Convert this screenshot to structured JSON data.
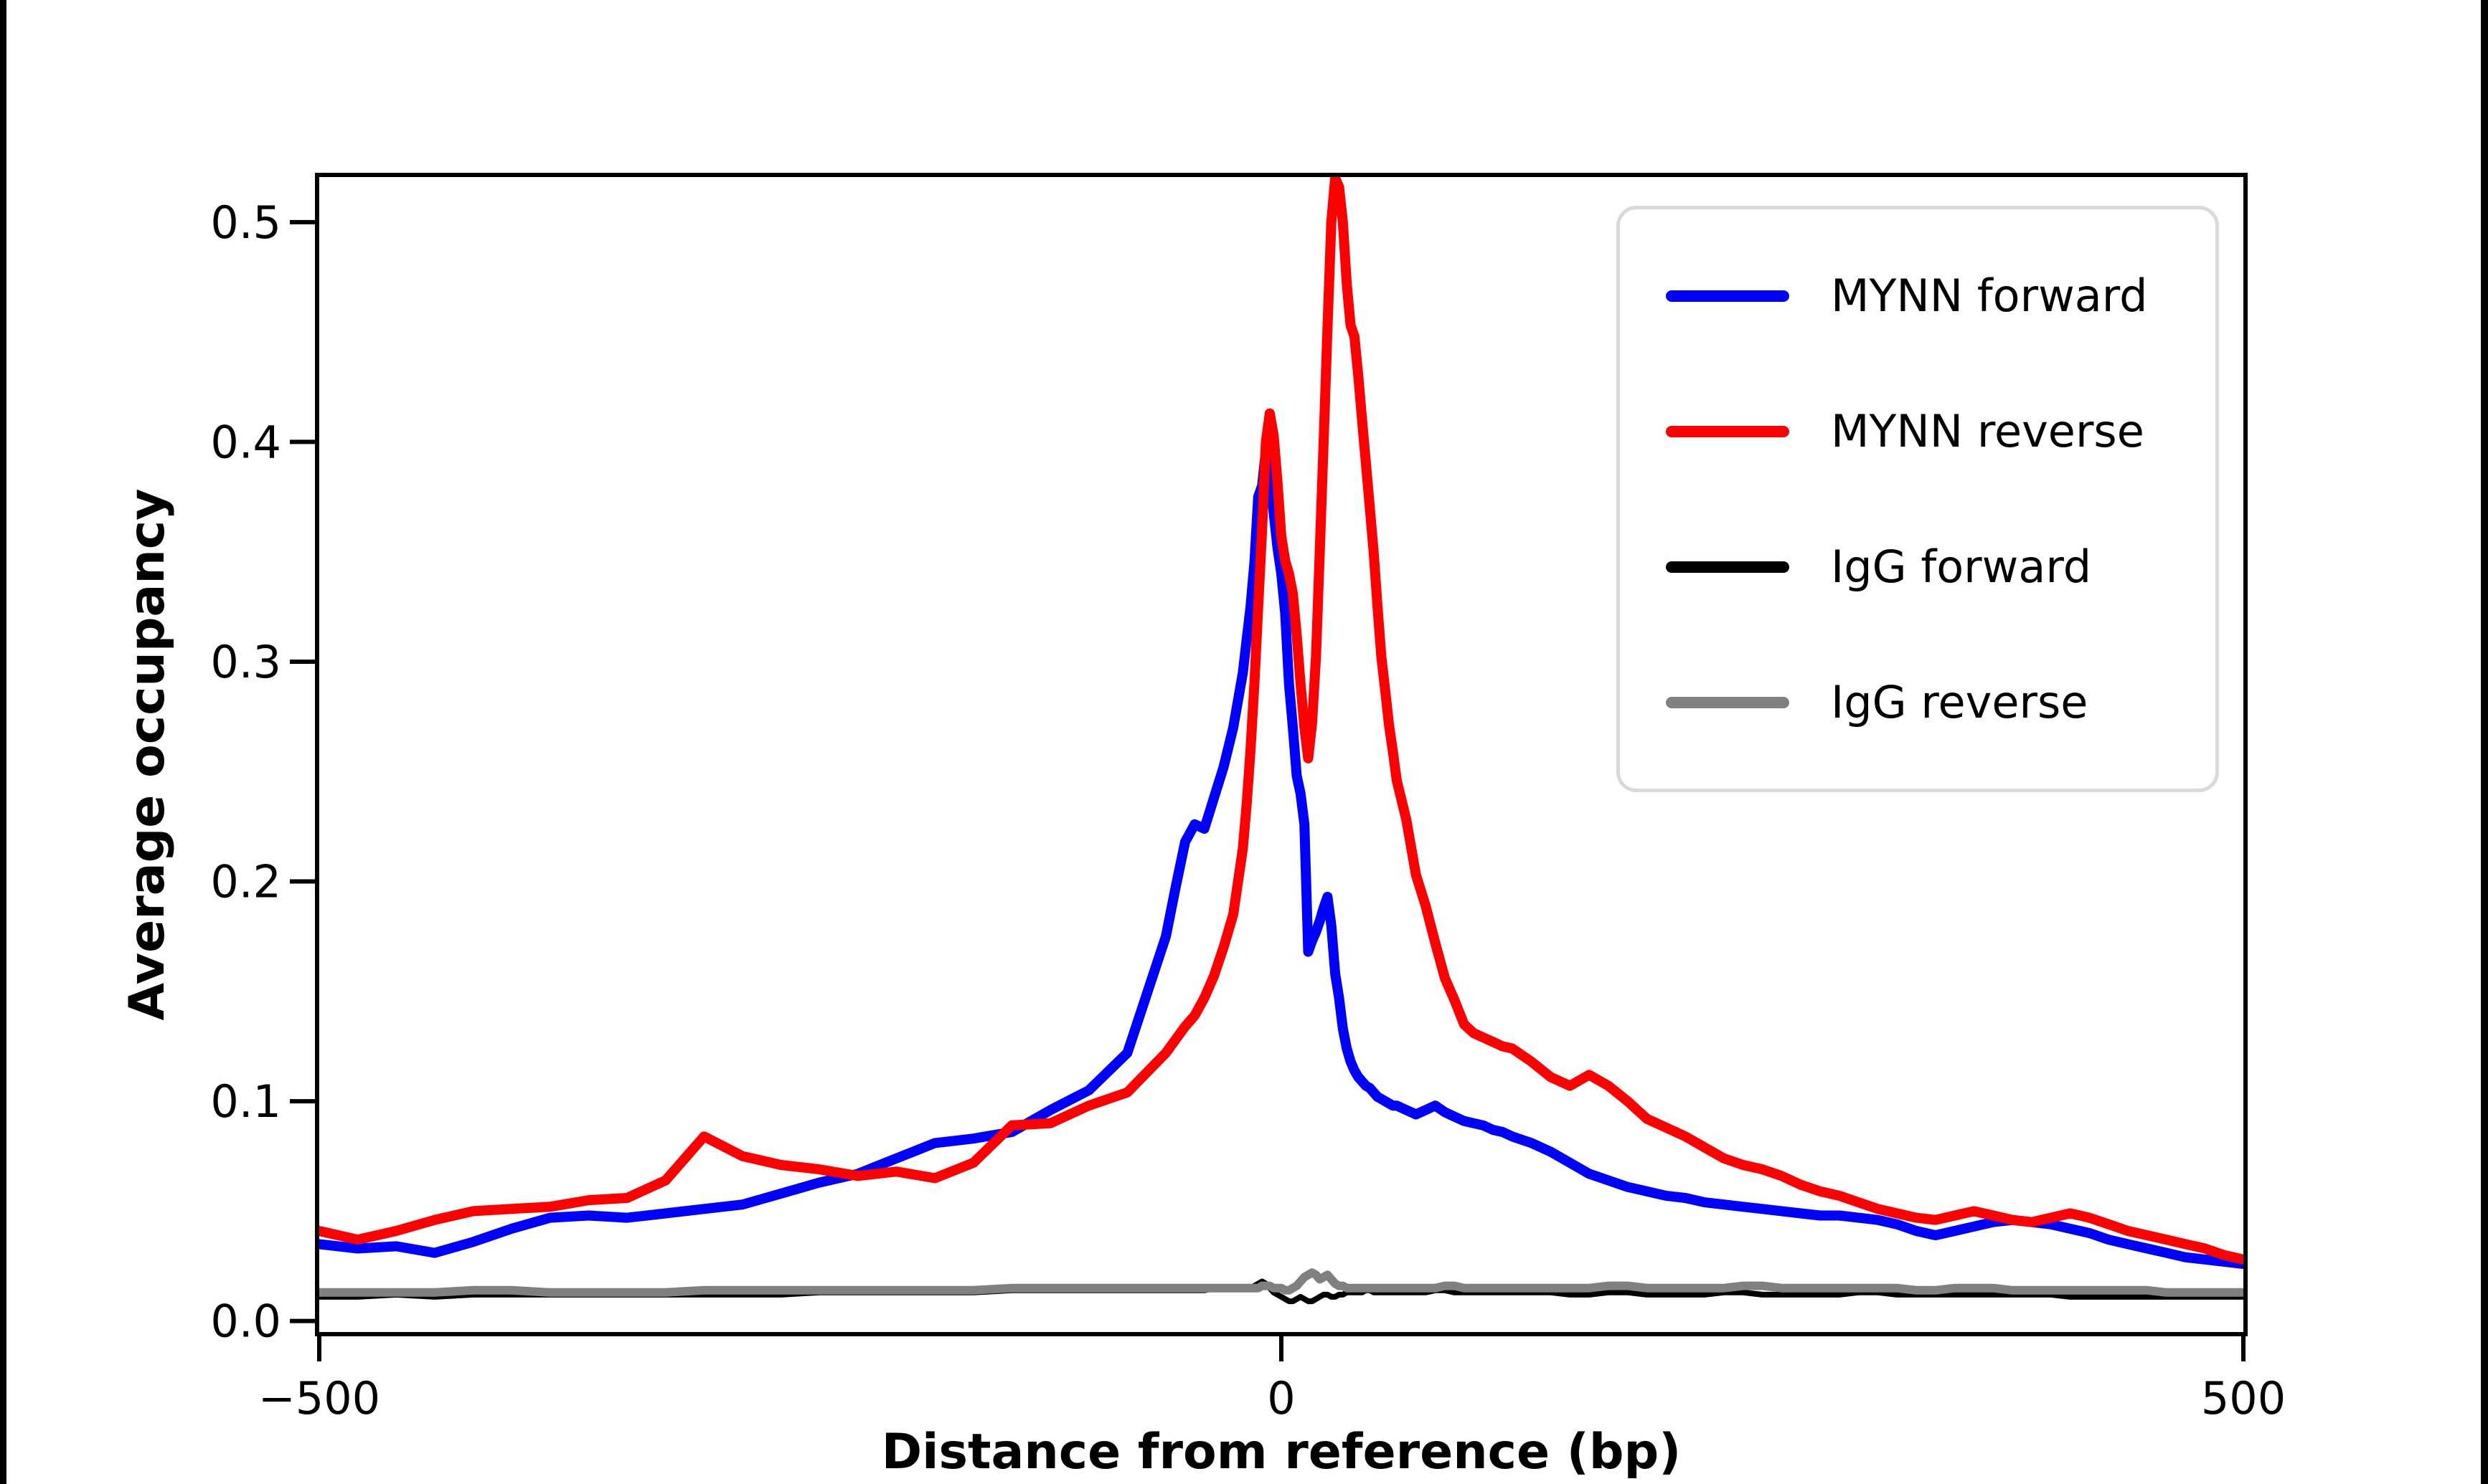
{
  "screen": {
    "background": "#ffffff",
    "edge_bar_color": "#000000"
  },
  "chart_data": {
    "type": "line",
    "title": "",
    "xlabel": "Distance from reference (bp)",
    "ylabel": "Average occupancy",
    "xlim": [
      -500,
      500
    ],
    "ylim": [
      -0.005,
      0.5205
    ],
    "grid": false,
    "legend_position": "upper right",
    "xticks": {
      "values": [
        -500,
        0,
        500
      ],
      "labels": [
        "−500",
        "0",
        "500"
      ]
    },
    "yticks": {
      "values": [
        0.0,
        0.1,
        0.2,
        0.3,
        0.4,
        0.5
      ],
      "labels": [
        "0.0",
        "0.1",
        "0.2",
        "0.3",
        "0.4",
        "0.5"
      ]
    },
    "x": [
      -500,
      -480,
      -460,
      -440,
      -420,
      -400,
      -380,
      -360,
      -340,
      -320,
      -300,
      -280,
      -260,
      -240,
      -220,
      -200,
      -180,
      -160,
      -140,
      -120,
      -100,
      -80,
      -60,
      -55,
      -50,
      -45,
      -40,
      -35,
      -30,
      -25,
      -20,
      -18,
      -16,
      -14,
      -12,
      -10,
      -8,
      -6,
      -4,
      -2,
      0,
      2,
      4,
      6,
      8,
      10,
      12,
      14,
      16,
      18,
      20,
      22,
      24,
      26,
      28,
      30,
      32,
      34,
      36,
      38,
      40,
      42,
      44,
      46,
      48,
      50,
      52,
      54,
      56,
      58,
      60,
      65,
      70,
      75,
      80,
      85,
      90,
      95,
      100,
      105,
      110,
      115,
      120,
      130,
      140,
      150,
      160,
      170,
      180,
      190,
      200,
      210,
      220,
      230,
      240,
      250,
      260,
      270,
      280,
      290,
      300,
      310,
      320,
      330,
      340,
      350,
      360,
      370,
      380,
      390,
      400,
      410,
      420,
      430,
      440,
      450,
      460,
      470,
      480,
      490,
      500
    ],
    "series": [
      {
        "name": "MYNN forward",
        "color": "#0000ff",
        "values": [
          0.035,
          0.033,
          0.034,
          0.031,
          0.036,
          0.042,
          0.047,
          0.048,
          0.047,
          0.049,
          0.051,
          0.053,
          0.058,
          0.063,
          0.067,
          0.074,
          0.081,
          0.083,
          0.086,
          0.096,
          0.105,
          0.122,
          0.175,
          0.197,
          0.218,
          0.226,
          0.224,
          0.238,
          0.252,
          0.27,
          0.295,
          0.31,
          0.325,
          0.345,
          0.375,
          0.38,
          0.396,
          0.385,
          0.368,
          0.352,
          0.34,
          0.322,
          0.29,
          0.27,
          0.248,
          0.24,
          0.226,
          0.168,
          0.173,
          0.177,
          0.182,
          0.188,
          0.193,
          0.18,
          0.158,
          0.147,
          0.133,
          0.124,
          0.118,
          0.114,
          0.111,
          0.109,
          0.107,
          0.106,
          0.104,
          0.102,
          0.101,
          0.1,
          0.099,
          0.098,
          0.098,
          0.096,
          0.094,
          0.096,
          0.098,
          0.095,
          0.093,
          0.091,
          0.09,
          0.089,
          0.087,
          0.086,
          0.084,
          0.081,
          0.077,
          0.072,
          0.067,
          0.064,
          0.061,
          0.059,
          0.057,
          0.056,
          0.054,
          0.053,
          0.052,
          0.051,
          0.05,
          0.049,
          0.048,
          0.048,
          0.047,
          0.046,
          0.044,
          0.041,
          0.039,
          0.041,
          0.043,
          0.045,
          0.046,
          0.045,
          0.044,
          0.042,
          0.04,
          0.037,
          0.035,
          0.033,
          0.031,
          0.029,
          0.028,
          0.027,
          0.026
        ]
      },
      {
        "name": "MYNN reverse",
        "color": "#ff0000",
        "values": [
          0.041,
          0.037,
          0.041,
          0.046,
          0.05,
          0.051,
          0.052,
          0.055,
          0.056,
          0.064,
          0.084,
          0.075,
          0.071,
          0.069,
          0.066,
          0.068,
          0.065,
          0.072,
          0.089,
          0.09,
          0.098,
          0.104,
          0.122,
          0.128,
          0.134,
          0.139,
          0.147,
          0.157,
          0.17,
          0.185,
          0.215,
          0.235,
          0.26,
          0.29,
          0.325,
          0.36,
          0.4,
          0.413,
          0.403,
          0.382,
          0.357,
          0.346,
          0.34,
          0.331,
          0.312,
          0.29,
          0.27,
          0.256,
          0.272,
          0.302,
          0.35,
          0.4,
          0.452,
          0.5,
          0.52,
          0.516,
          0.5,
          0.472,
          0.453,
          0.448,
          0.43,
          0.41,
          0.39,
          0.37,
          0.35,
          0.325,
          0.302,
          0.287,
          0.271,
          0.259,
          0.246,
          0.228,
          0.203,
          0.189,
          0.172,
          0.156,
          0.146,
          0.135,
          0.131,
          0.129,
          0.127,
          0.125,
          0.124,
          0.118,
          0.111,
          0.107,
          0.112,
          0.107,
          0.1,
          0.092,
          0.088,
          0.084,
          0.079,
          0.074,
          0.071,
          0.069,
          0.066,
          0.062,
          0.059,
          0.057,
          0.054,
          0.051,
          0.049,
          0.047,
          0.046,
          0.048,
          0.05,
          0.048,
          0.046,
          0.045,
          0.047,
          0.049,
          0.047,
          0.044,
          0.041,
          0.039,
          0.037,
          0.035,
          0.033,
          0.03,
          0.028
        ]
      },
      {
        "name": "IgG forward",
        "color": "#000000",
        "values": [
          0.011,
          0.011,
          0.012,
          0.011,
          0.012,
          0.012,
          0.012,
          0.012,
          0.012,
          0.012,
          0.012,
          0.012,
          0.012,
          0.013,
          0.013,
          0.013,
          0.013,
          0.013,
          0.014,
          0.014,
          0.014,
          0.014,
          0.014,
          0.014,
          0.014,
          0.014,
          0.014,
          0.015,
          0.015,
          0.015,
          0.015,
          0.015,
          0.015,
          0.016,
          0.017,
          0.018,
          0.017,
          0.015,
          0.013,
          0.012,
          0.011,
          0.01,
          0.009,
          0.009,
          0.01,
          0.011,
          0.01,
          0.009,
          0.009,
          0.01,
          0.011,
          0.012,
          0.012,
          0.011,
          0.011,
          0.012,
          0.012,
          0.013,
          0.013,
          0.013,
          0.013,
          0.013,
          0.014,
          0.014,
          0.013,
          0.013,
          0.013,
          0.013,
          0.013,
          0.013,
          0.013,
          0.013,
          0.013,
          0.013,
          0.014,
          0.014,
          0.013,
          0.013,
          0.013,
          0.013,
          0.013,
          0.013,
          0.013,
          0.013,
          0.013,
          0.012,
          0.012,
          0.013,
          0.013,
          0.012,
          0.012,
          0.012,
          0.012,
          0.013,
          0.013,
          0.012,
          0.012,
          0.012,
          0.012,
          0.012,
          0.013,
          0.013,
          0.012,
          0.012,
          0.012,
          0.012,
          0.012,
          0.012,
          0.012,
          0.012,
          0.012,
          0.011,
          0.011,
          0.011,
          0.011,
          0.011,
          0.011,
          0.011,
          0.011,
          0.011,
          0.011
        ]
      },
      {
        "name": "IgG reverse",
        "color": "#808080",
        "values": [
          0.013,
          0.013,
          0.013,
          0.013,
          0.014,
          0.014,
          0.013,
          0.013,
          0.013,
          0.013,
          0.014,
          0.014,
          0.014,
          0.014,
          0.014,
          0.014,
          0.014,
          0.014,
          0.015,
          0.015,
          0.015,
          0.015,
          0.015,
          0.015,
          0.015,
          0.015,
          0.015,
          0.015,
          0.015,
          0.015,
          0.015,
          0.015,
          0.015,
          0.015,
          0.015,
          0.016,
          0.016,
          0.016,
          0.015,
          0.015,
          0.015,
          0.014,
          0.014,
          0.015,
          0.016,
          0.018,
          0.02,
          0.021,
          0.022,
          0.021,
          0.019,
          0.02,
          0.021,
          0.019,
          0.017,
          0.016,
          0.016,
          0.015,
          0.015,
          0.015,
          0.015,
          0.015,
          0.015,
          0.015,
          0.015,
          0.015,
          0.015,
          0.015,
          0.015,
          0.015,
          0.015,
          0.015,
          0.015,
          0.015,
          0.015,
          0.016,
          0.016,
          0.015,
          0.015,
          0.015,
          0.015,
          0.015,
          0.015,
          0.015,
          0.015,
          0.015,
          0.015,
          0.016,
          0.016,
          0.015,
          0.015,
          0.015,
          0.015,
          0.015,
          0.016,
          0.016,
          0.015,
          0.015,
          0.015,
          0.015,
          0.015,
          0.015,
          0.015,
          0.014,
          0.014,
          0.015,
          0.015,
          0.015,
          0.014,
          0.014,
          0.014,
          0.014,
          0.014,
          0.014,
          0.014,
          0.014,
          0.013,
          0.013,
          0.013,
          0.013,
          0.013
        ]
      }
    ]
  }
}
